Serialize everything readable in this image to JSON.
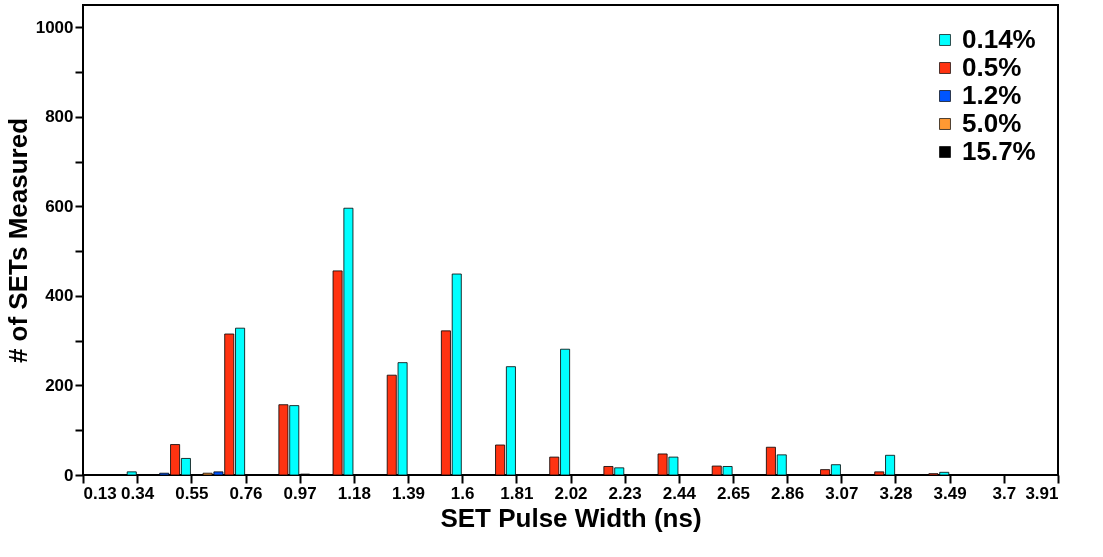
{
  "chart_data": {
    "type": "histogram",
    "xlabel": "SET Pulse Width (ns)",
    "ylabel": "# of SETs Measured",
    "bins": [
      0.13,
      0.34,
      0.55,
      0.76,
      0.97,
      1.18,
      1.39,
      1.6,
      1.81,
      2.02,
      2.23,
      2.44,
      2.65,
      2.86,
      3.07,
      3.28,
      3.49,
      3.7,
      3.91
    ],
    "series": [
      {
        "name": "0.14%",
        "color": "#00ffff",
        "values": [
          7,
          37,
          328,
          155,
          596,
          251,
          449,
          242,
          281,
          16,
          40,
          19,
          45,
          23,
          44,
          6,
          null,
          null
        ]
      },
      {
        "name": "0.5%",
        "color": "#ff3311",
        "values": [
          null,
          68,
          315,
          157,
          456,
          223,
          322,
          67,
          40,
          19,
          47,
          20,
          62,
          12,
          7,
          3,
          null,
          null
        ]
      },
      {
        "name": "1.2%",
        "color": "#0055ff",
        "values": [
          null,
          4,
          7,
          null,
          null,
          null,
          null,
          null,
          null,
          null,
          null,
          null,
          null,
          null,
          null,
          null,
          null,
          null
        ]
      },
      {
        "name": "5.0%",
        "color": "#ff9933",
        "values": [
          null,
          null,
          4,
          null,
          null,
          null,
          null,
          null,
          null,
          null,
          null,
          null,
          null,
          null,
          null,
          null,
          null,
          null
        ]
      },
      {
        "name": "15.7%",
        "color": "#000000",
        "values": [
          null,
          null,
          null,
          null,
          2,
          null,
          null,
          null,
          null,
          null,
          null,
          null,
          null,
          null,
          null,
          null,
          null,
          null
        ]
      }
    ],
    "xlim": [
      0.13,
      3.91
    ],
    "xticks": [
      0.13,
      0.34,
      0.55,
      0.76,
      0.97,
      1.18,
      1.39,
      1.6,
      1.81,
      2.02,
      2.23,
      2.44,
      2.65,
      2.86,
      3.07,
      3.28,
      3.49,
      3.7,
      3.91
    ],
    "ylim": [
      0,
      1050
    ],
    "yticks": [
      0,
      {
        "value": 100,
        "label": null
      },
      200,
      {
        "value": 300,
        "label": null
      },
      400,
      {
        "value": 500,
        "label": null
      },
      600,
      {
        "value": 700,
        "label": null
      },
      800,
      {
        "value": 900,
        "label": null
      },
      1000
    ],
    "grid": false,
    "legend": "top right"
  }
}
